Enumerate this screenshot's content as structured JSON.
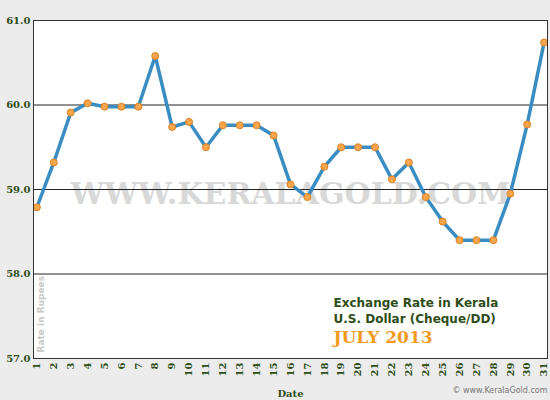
{
  "chart_data": {
    "type": "line",
    "title": "Exchange Rate in Kerala",
    "subtitle": "U.S. Dollar (Cheque/DD)",
    "period": "JULY 2013",
    "watermark": "WWW.KERALAGOLD.COM",
    "source": "© www.KeralaGold.com",
    "x_label": "Date",
    "y_label": "Rate in Rupees",
    "x": [
      1,
      2,
      3,
      4,
      5,
      6,
      7,
      8,
      9,
      10,
      11,
      12,
      13,
      14,
      15,
      16,
      17,
      18,
      19,
      20,
      21,
      22,
      23,
      24,
      25,
      26,
      27,
      28,
      29,
      30,
      31
    ],
    "values": [
      58.79,
      59.32,
      59.91,
      60.02,
      59.98,
      59.98,
      59.98,
      60.58,
      59.74,
      59.8,
      59.5,
      59.76,
      59.76,
      59.76,
      59.64,
      59.06,
      58.91,
      59.27,
      59.5,
      59.5,
      59.5,
      59.12,
      59.32,
      58.91,
      58.62,
      58.4,
      58.4,
      58.4,
      58.95,
      59.77,
      60.74
    ],
    "color": "#3a8dc2",
    "marker": "circle",
    "xlim": [
      0.8,
      31.2
    ],
    "xticks": [
      1,
      2,
      3,
      4,
      5,
      6,
      7,
      8,
      9,
      10,
      11,
      12,
      13,
      14,
      15,
      16,
      17,
      18,
      19,
      20,
      21,
      22,
      23,
      24,
      25,
      26,
      27,
      28,
      29,
      30,
      31
    ],
    "ylim": [
      57,
      61
    ],
    "yticks": [
      {
        "value": 57,
        "label": "57.0"
      },
      {
        "value": 58,
        "label": "58.0"
      },
      {
        "value": 59,
        "label": "59.0"
      },
      {
        "value": 60,
        "label": "60.0"
      },
      {
        "value": 61,
        "label": "61.0"
      }
    ],
    "grid": true
  }
}
